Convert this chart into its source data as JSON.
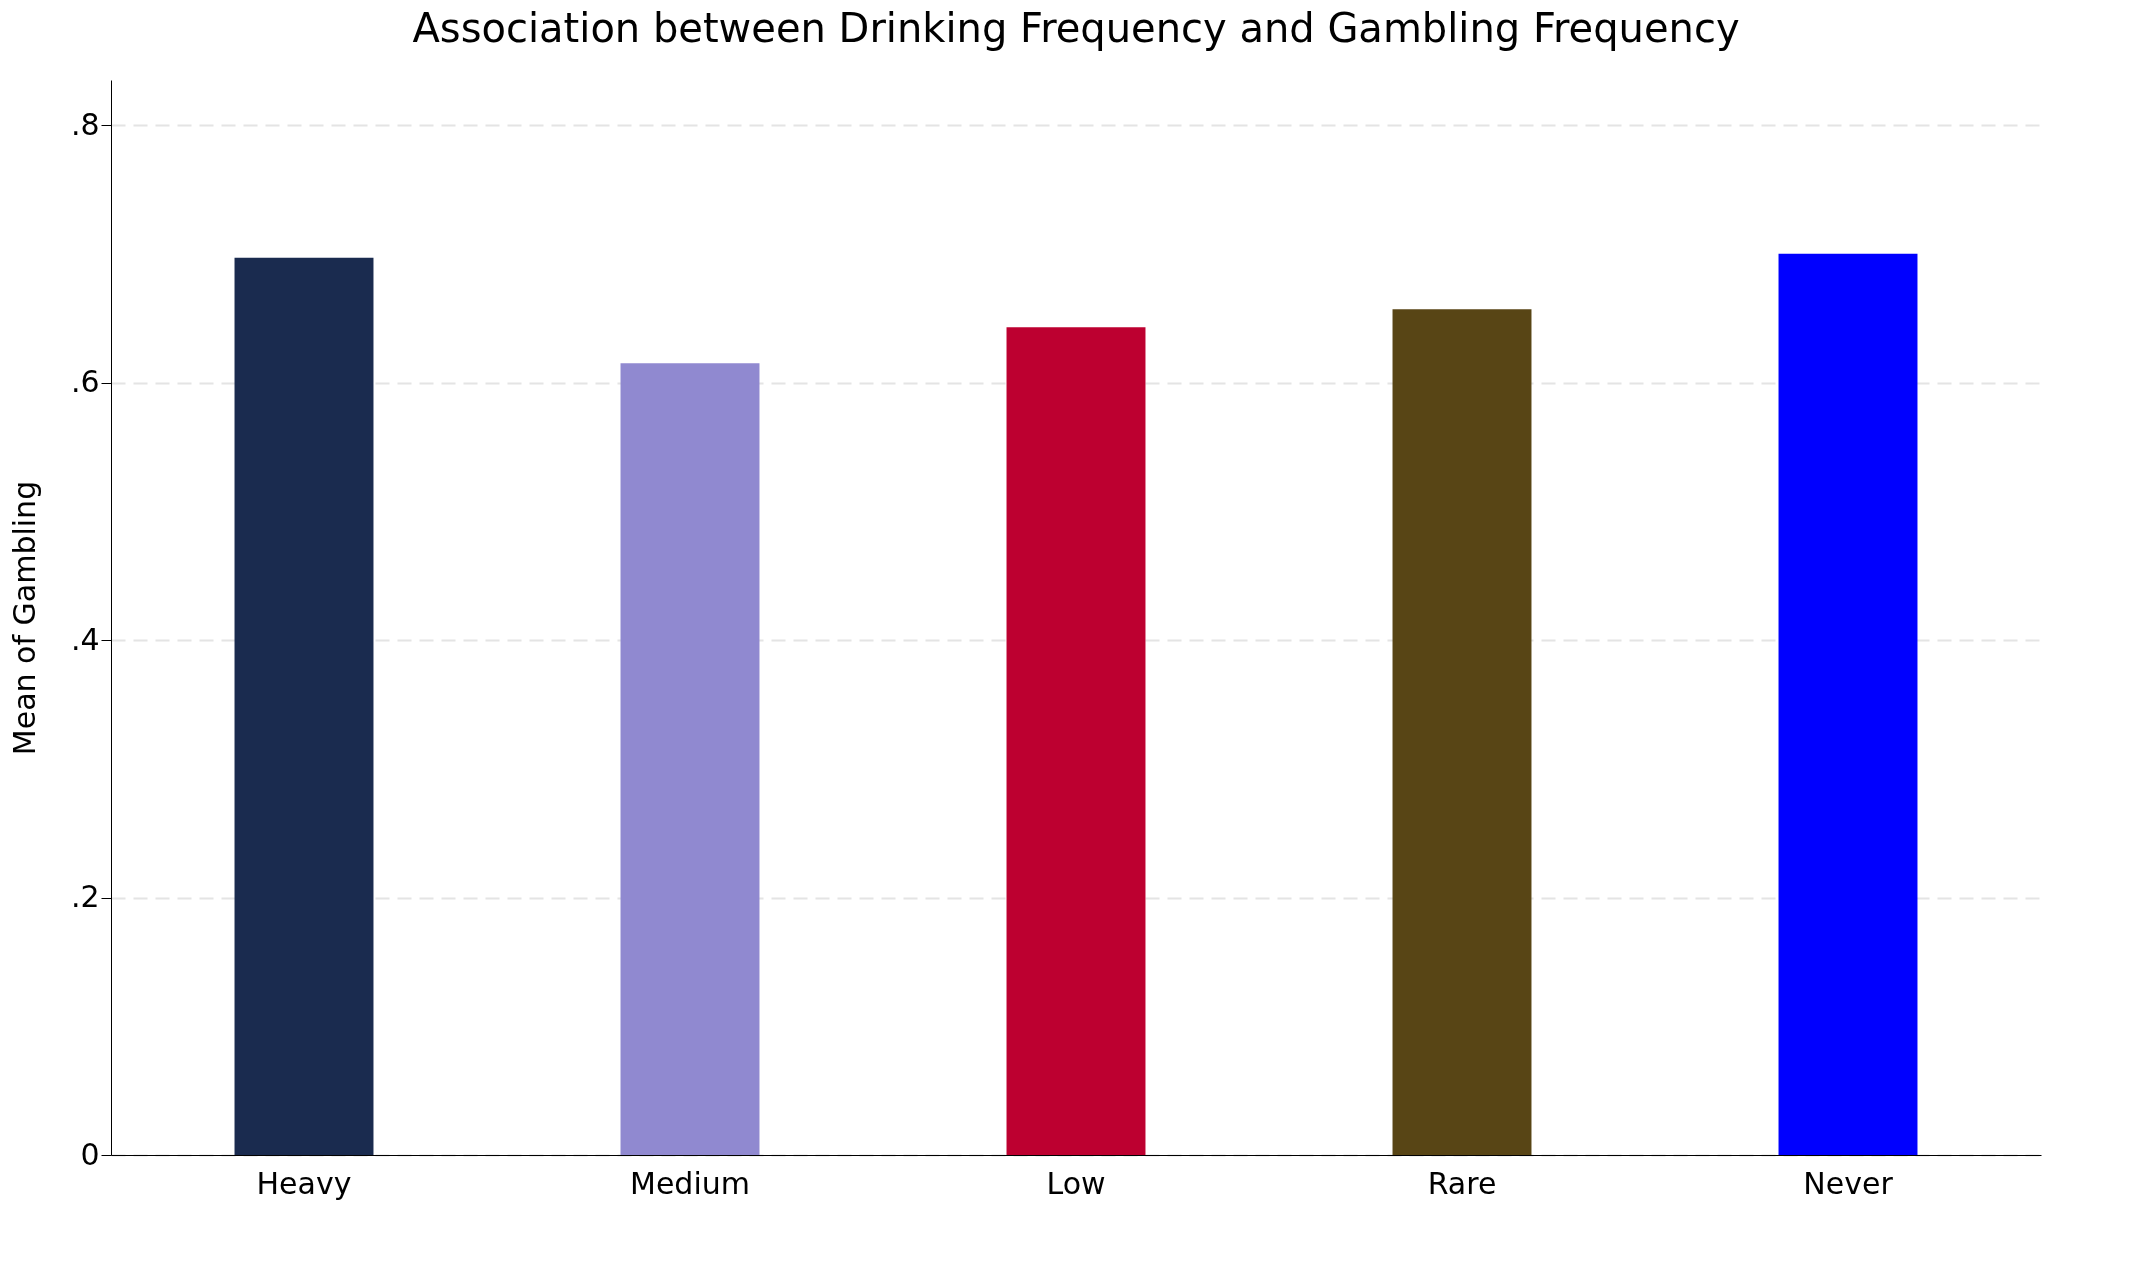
{
  "chart_data": {
    "type": "bar",
    "title": "Association between Drinking Frequency and Gambling Frequency",
    "ylabel": "Mean of Gambling",
    "categories": [
      "Heavy",
      "Medium",
      "Low",
      "Rare",
      "Never"
    ],
    "values": [
      0.697,
      0.615,
      0.643,
      0.657,
      0.7
    ],
    "colors": [
      "#1a2b4f",
      "#9089d0",
      "#bd0030",
      "#584515",
      "#0000ff"
    ],
    "ylim": [
      0,
      0.835
    ],
    "yticks": [
      0,
      {
        "value": 0.2,
        "label": ".2"
      },
      {
        "value": 0.4,
        "label": ".4"
      },
      {
        "value": 0.6,
        "label": ".6"
      },
      {
        "value": 0.8,
        "label": ".8"
      }
    ],
    "grid": "y",
    "legend": false
  }
}
